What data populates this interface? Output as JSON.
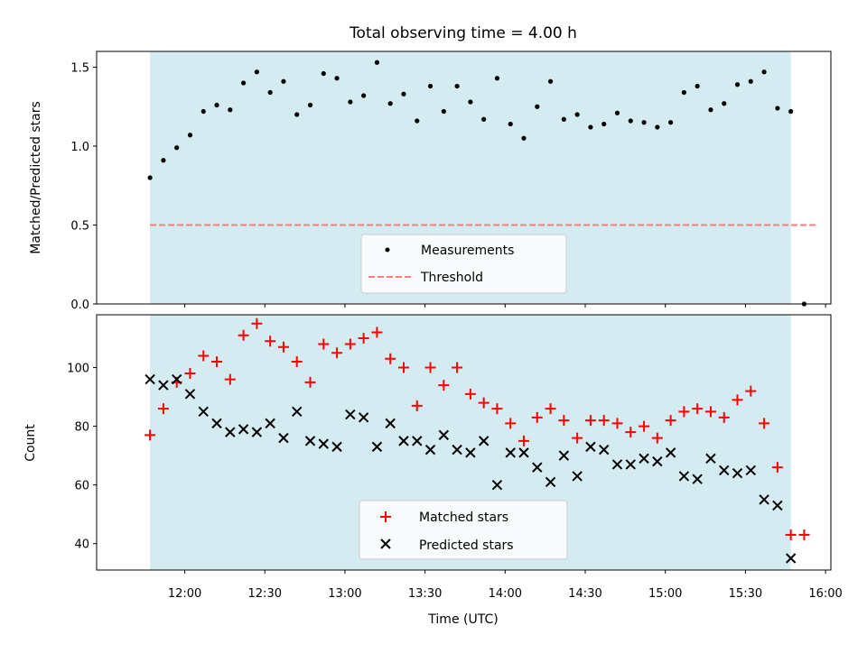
{
  "chart_data": [
    {
      "type": "scatter",
      "title": "Total observing time = 4.00 h",
      "xlabel": "",
      "ylabel": "Matched/Predicted stars",
      "ylim": [
        0,
        1.6
      ],
      "yticks": [
        "0.0",
        "0.5",
        "1.0",
        "1.5"
      ],
      "shaded_region": {
        "x_start": "11:47",
        "x_end": "15:47",
        "color": "#d4ebf1"
      },
      "threshold": {
        "label": "Threshold",
        "value": 0.5,
        "x_start": "11:47",
        "x_end": "15:57",
        "color": "#f08080"
      },
      "legend": [
        "Measurements",
        "Threshold"
      ],
      "legend_position": "lower-center",
      "series": [
        {
          "name": "Measurements",
          "color": "#000000",
          "marker": "dot",
          "x": [
            "11:47",
            "11:52",
            "11:57",
            "12:02",
            "12:07",
            "12:12",
            "12:17",
            "12:22",
            "12:27",
            "12:32",
            "12:37",
            "12:42",
            "12:47",
            "12:52",
            "12:57",
            "13:02",
            "13:07",
            "13:12",
            "13:17",
            "13:22",
            "13:27",
            "13:32",
            "13:37",
            "13:42",
            "13:47",
            "13:52",
            "13:57",
            "14:02",
            "14:07",
            "14:12",
            "14:17",
            "14:22",
            "14:27",
            "14:32",
            "14:37",
            "14:42",
            "14:47",
            "14:52",
            "14:57",
            "15:02",
            "15:07",
            "15:12",
            "15:17",
            "15:22",
            "15:27",
            "15:32",
            "15:37",
            "15:42",
            "15:47",
            "15:52"
          ],
          "values": [
            0.8,
            0.91,
            0.99,
            1.07,
            1.22,
            1.26,
            1.23,
            1.4,
            1.47,
            1.34,
            1.41,
            1.2,
            1.26,
            1.46,
            1.43,
            1.28,
            1.32,
            1.53,
            1.27,
            1.33,
            1.16,
            1.38,
            1.22,
            1.38,
            1.28,
            1.17,
            1.43,
            1.14,
            1.05,
            1.25,
            1.41,
            1.17,
            1.2,
            1.12,
            1.14,
            1.21,
            1.16,
            1.15,
            1.12,
            1.15,
            1.34,
            1.38,
            1.23,
            1.27,
            1.39,
            1.41,
            1.47,
            1.24,
            1.22,
            0.0
          ]
        }
      ]
    },
    {
      "type": "scatter",
      "title": "",
      "xlabel": "Time (UTC)",
      "ylabel": "Count",
      "ylim": [
        31,
        118
      ],
      "yticks": [
        "40",
        "60",
        "80",
        "100"
      ],
      "xticks": [
        "12:00",
        "12:30",
        "13:00",
        "13:30",
        "14:00",
        "14:30",
        "15:00",
        "15:30",
        "16:00"
      ],
      "xlim": [
        "11:27",
        "16:02"
      ],
      "legend": [
        "Matched stars",
        "Predicted stars"
      ],
      "legend_position": "lower-center",
      "series": [
        {
          "name": "Matched stars",
          "color": "#ff0000",
          "marker": "plus",
          "x": [
            "11:47",
            "11:52",
            "11:57",
            "12:02",
            "12:07",
            "12:12",
            "12:17",
            "12:22",
            "12:27",
            "12:32",
            "12:37",
            "12:42",
            "12:47",
            "12:52",
            "12:57",
            "13:02",
            "13:07",
            "13:12",
            "13:17",
            "13:22",
            "13:27",
            "13:32",
            "13:37",
            "13:42",
            "13:47",
            "13:52",
            "13:57",
            "14:02",
            "14:07",
            "14:12",
            "14:17",
            "14:22",
            "14:27",
            "14:32",
            "14:37",
            "14:42",
            "14:47",
            "14:52",
            "14:57",
            "15:02",
            "15:07",
            "15:12",
            "15:17",
            "15:22",
            "15:27",
            "15:32",
            "15:37",
            "15:42",
            "15:47",
            "15:52"
          ],
          "values": [
            77,
            86,
            95,
            98,
            104,
            102,
            96,
            111,
            115,
            109,
            107,
            102,
            95,
            108,
            105,
            108,
            110,
            112,
            103,
            100,
            87,
            100,
            94,
            100,
            91,
            88,
            86,
            81,
            75,
            83,
            86,
            82,
            76,
            82,
            82,
            81,
            78,
            80,
            76,
            82,
            85,
            86,
            85,
            83,
            89,
            92,
            81,
            66,
            43,
            43
          ]
        },
        {
          "name": "Predicted stars",
          "color": "#000000",
          "marker": "x",
          "x": [
            "11:47",
            "11:52",
            "11:57",
            "12:02",
            "12:07",
            "12:12",
            "12:17",
            "12:22",
            "12:27",
            "12:32",
            "12:37",
            "12:42",
            "12:47",
            "12:52",
            "12:57",
            "13:02",
            "13:07",
            "13:12",
            "13:17",
            "13:22",
            "13:27",
            "13:32",
            "13:37",
            "13:42",
            "13:47",
            "13:52",
            "13:57",
            "14:02",
            "14:07",
            "14:12",
            "14:17",
            "14:22",
            "14:27",
            "14:32",
            "14:37",
            "14:42",
            "14:47",
            "14:52",
            "14:57",
            "15:02",
            "15:07",
            "15:12",
            "15:17",
            "15:22",
            "15:27",
            "15:32",
            "15:37",
            "15:42",
            "15:47"
          ],
          "values": [
            96,
            94,
            96,
            91,
            85,
            81,
            78,
            79,
            78,
            81,
            76,
            85,
            75,
            74,
            73,
            84,
            83,
            73,
            81,
            75,
            75,
            72,
            77,
            72,
            71,
            75,
            60,
            71,
            71,
            66,
            61,
            70,
            63,
            73,
            72,
            67,
            67,
            69,
            68,
            71,
            63,
            62,
            69,
            65,
            64,
            65,
            55,
            53,
            35
          ]
        }
      ]
    }
  ]
}
